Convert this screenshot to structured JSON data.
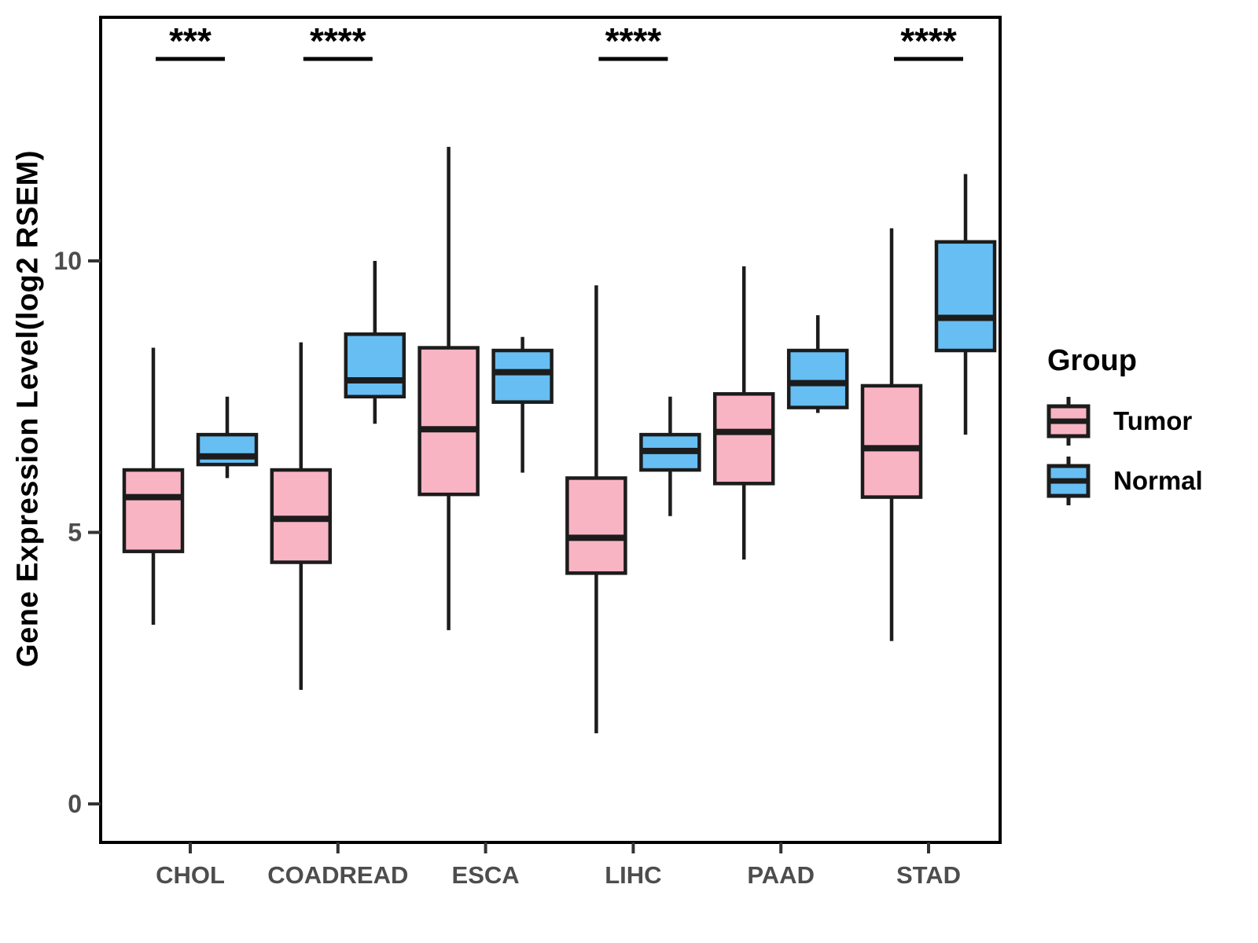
{
  "chart_data": {
    "type": "boxplot",
    "title": "",
    "xlabel": "",
    "ylabel": "Gene Expression Level(log2 RSEM)",
    "categories": [
      "CHOL",
      "COADREAD",
      "ESCA",
      "LIHC",
      "PAAD",
      "STAD"
    ],
    "y_ticks": [
      0,
      5,
      10
    ],
    "ylim": [
      -0.7,
      14.5
    ],
    "grid": false,
    "legend": {
      "title": "Group",
      "position": "right",
      "items": [
        {
          "label": "Tumor",
          "color": "#F9B4C4"
        },
        {
          "label": "Normal",
          "color": "#67BEF2"
        }
      ]
    },
    "series": [
      {
        "name": "Tumor",
        "color": "#F9B4C4",
        "boxes": [
          {
            "category": "CHOL",
            "min": 3.3,
            "q1": 4.65,
            "median": 5.65,
            "q3": 6.15,
            "max": 8.4
          },
          {
            "category": "COADREAD",
            "min": 2.1,
            "q1": 4.45,
            "median": 5.25,
            "q3": 6.15,
            "max": 8.5
          },
          {
            "category": "ESCA",
            "min": 3.2,
            "q1": 5.7,
            "median": 6.9,
            "q3": 8.4,
            "max": 12.1
          },
          {
            "category": "LIHC",
            "min": 1.3,
            "q1": 4.25,
            "median": 4.9,
            "q3": 6.0,
            "max": 9.55
          },
          {
            "category": "PAAD",
            "min": 4.5,
            "q1": 5.9,
            "median": 6.85,
            "q3": 7.55,
            "max": 9.9
          },
          {
            "category": "STAD",
            "min": 3.0,
            "q1": 5.65,
            "median": 6.55,
            "q3": 7.7,
            "max": 10.6
          }
        ]
      },
      {
        "name": "Normal",
        "color": "#67BEF2",
        "boxes": [
          {
            "category": "CHOL",
            "min": 6.0,
            "q1": 6.25,
            "median": 6.4,
            "q3": 6.8,
            "max": 7.5
          },
          {
            "category": "COADREAD",
            "min": 7.0,
            "q1": 7.5,
            "median": 7.8,
            "q3": 8.65,
            "max": 10.0
          },
          {
            "category": "ESCA",
            "min": 6.1,
            "q1": 7.4,
            "median": 7.95,
            "q3": 8.35,
            "max": 8.6
          },
          {
            "category": "LIHC",
            "min": 5.3,
            "q1": 6.15,
            "median": 6.5,
            "q3": 6.8,
            "max": 7.5
          },
          {
            "category": "PAAD",
            "min": 7.2,
            "q1": 7.3,
            "median": 7.75,
            "q3": 8.35,
            "max": 9.0
          },
          {
            "category": "STAD",
            "min": 6.8,
            "q1": 8.35,
            "median": 8.95,
            "q3": 10.35,
            "max": 11.6
          }
        ]
      }
    ],
    "significance": [
      {
        "category": "CHOL",
        "label": "***"
      },
      {
        "category": "COADREAD",
        "label": "****"
      },
      {
        "category": "LIHC",
        "label": "****"
      },
      {
        "category": "STAD",
        "label": "****"
      }
    ],
    "colors": {
      "box_stroke": "#1c1c1c",
      "axis_text": "#4d4d4d",
      "panel_border": "#000000",
      "significance_text": "#000000"
    }
  }
}
